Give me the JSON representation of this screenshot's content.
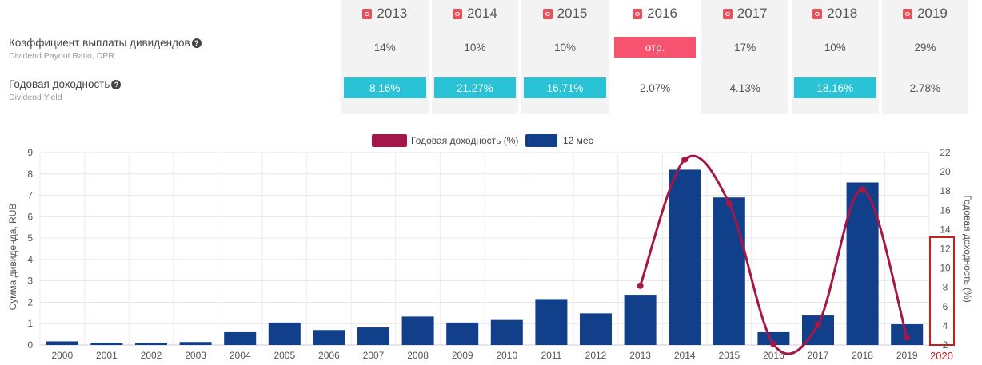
{
  "table": {
    "years": [
      "2013",
      "2014",
      "2015",
      "2016",
      "2017",
      "2018",
      "2019"
    ],
    "rows": [
      {
        "label_ru": "Коэффициент выплаты дивидендов",
        "label_en": "Dividend Payout Ratio, DPR",
        "cells": [
          {
            "value": "14%",
            "style": "plain"
          },
          {
            "value": "10%",
            "style": "plain"
          },
          {
            "value": "10%",
            "style": "plain"
          },
          {
            "value": "отр.",
            "style": "red"
          },
          {
            "value": "17%",
            "style": "plain"
          },
          {
            "value": "10%",
            "style": "plain"
          },
          {
            "value": "29%",
            "style": "plain"
          }
        ]
      },
      {
        "label_ru": "Годовая доходность",
        "label_en": "Dividend Yield",
        "cells": [
          {
            "value": "8.16%",
            "style": "cyan"
          },
          {
            "value": "21.27%",
            "style": "cyan"
          },
          {
            "value": "16.71%",
            "style": "cyan"
          },
          {
            "value": "2.07%",
            "style": "plain"
          },
          {
            "value": "4.13%",
            "style": "plain"
          },
          {
            "value": "18.16%",
            "style": "cyan"
          },
          {
            "value": "2.78%",
            "style": "plain"
          }
        ]
      }
    ],
    "help_icon": "question-circle-icon",
    "year_icon": "pdf-file-icon",
    "colors": {
      "highlight": "#2ac3d6",
      "negative": "#f55370",
      "column_bg": "#f3f3f3"
    }
  },
  "chart_data": {
    "type": "bar",
    "categories": [
      "2000",
      "2001",
      "2002",
      "2003",
      "2004",
      "2005",
      "2006",
      "2007",
      "2008",
      "2009",
      "2010",
      "2011",
      "2012",
      "2013",
      "2014",
      "2015",
      "2016",
      "2017",
      "2018",
      "2019"
    ],
    "series": [
      {
        "name": "12 мес",
        "type": "bar",
        "axis": "left",
        "color": "#123f8a",
        "values": [
          0.17,
          0.1,
          0.1,
          0.14,
          0.6,
          1.05,
          0.7,
          0.82,
          1.33,
          1.05,
          1.17,
          2.15,
          1.48,
          2.35,
          8.2,
          6.9,
          0.6,
          1.38,
          7.6,
          0.97
        ]
      },
      {
        "name": "Годовая доходность (%)",
        "type": "line",
        "axis": "right",
        "color": "#a3174b",
        "points": [
          {
            "x": "2013",
            "y": 8.16
          },
          {
            "x": "2014",
            "y": 21.27
          },
          {
            "x": "2015",
            "y": 16.71
          },
          {
            "x": "2016",
            "y": 2.07
          },
          {
            "x": "2017",
            "y": 4.13
          },
          {
            "x": "2018",
            "y": 18.16
          },
          {
            "x": "2019",
            "y": 2.78
          }
        ]
      }
    ],
    "ylabel": "Сумма дивиденда, RUB",
    "ylabel_right": "Годовая доходность (%)",
    "ylim": [
      0,
      9
    ],
    "yticks": [
      0,
      1,
      2,
      3,
      4,
      5,
      6,
      7,
      8,
      9
    ],
    "ylim_right": [
      2,
      22
    ],
    "yticks_right": [
      2,
      4,
      6,
      8,
      10,
      12,
      14,
      16,
      18,
      20,
      22
    ],
    "legend": "top-center",
    "grid": true,
    "annotation": {
      "label": "2020",
      "color": "#c4201f"
    }
  }
}
